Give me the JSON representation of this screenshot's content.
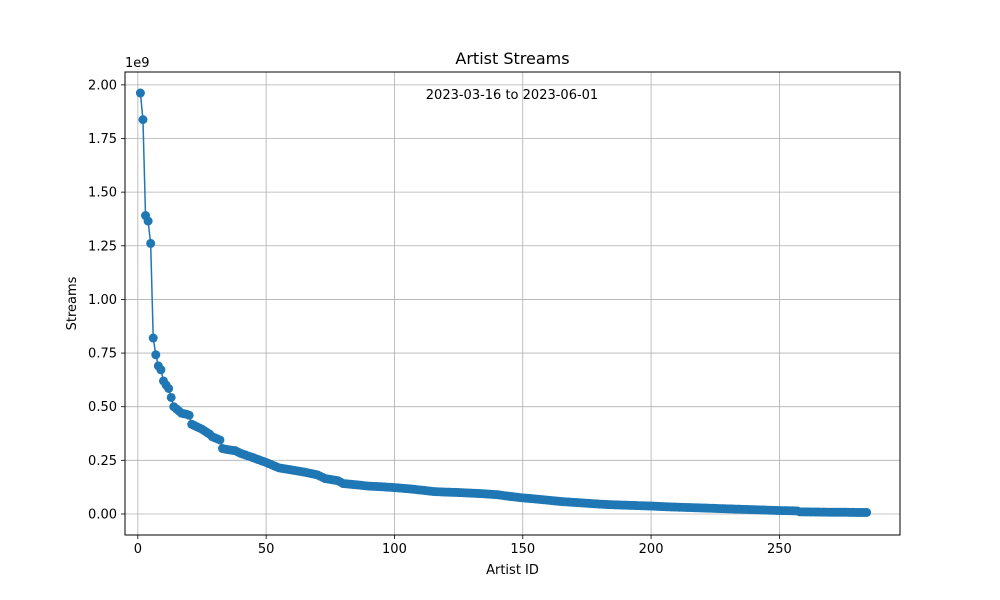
{
  "chart_data": {
    "type": "line",
    "title": "Artist Streams",
    "annotation": "2023-03-16 to 2023-06-01",
    "xlabel": "Artist ID",
    "ylabel": "Streams",
    "y_offset_label": "1e9",
    "xlim": [
      -5,
      297
    ],
    "ylim": [
      -0.098,
      2.06
    ],
    "x_ticks": [
      0,
      50,
      100,
      150,
      200,
      250
    ],
    "y_ticks": [
      0.0,
      0.25,
      0.5,
      0.75,
      1.0,
      1.25,
      1.5,
      1.75,
      2.0
    ],
    "y_tick_labels": [
      "0.00",
      "0.25",
      "0.50",
      "0.75",
      "1.00",
      "1.25",
      "1.50",
      "1.75",
      "2.00"
    ],
    "x_tick_labels": [
      "0",
      "50",
      "100",
      "150",
      "200",
      "250"
    ],
    "grid": true,
    "series_color": "#1f77b4",
    "key_points": [
      [
        1,
        1.962
      ],
      [
        2,
        1.838
      ],
      [
        3,
        1.391
      ],
      [
        4,
        1.365
      ],
      [
        5,
        1.261
      ],
      [
        6,
        0.82
      ],
      [
        7,
        0.742
      ],
      [
        8,
        0.69
      ],
      [
        9,
        0.672
      ],
      [
        10,
        0.62
      ],
      [
        11,
        0.601
      ],
      [
        12,
        0.585
      ],
      [
        13,
        0.543
      ],
      [
        14,
        0.5
      ],
      [
        15,
        0.49
      ],
      [
        16,
        0.48
      ],
      [
        17,
        0.47
      ],
      [
        18,
        0.467
      ],
      [
        19,
        0.465
      ],
      [
        20,
        0.46
      ],
      [
        21,
        0.418
      ],
      [
        25,
        0.395
      ],
      [
        28,
        0.372
      ],
      [
        29,
        0.36
      ],
      [
        32,
        0.345
      ],
      [
        33,
        0.305
      ],
      [
        35,
        0.3
      ],
      [
        38,
        0.295
      ],
      [
        40,
        0.283
      ],
      [
        45,
        0.262
      ],
      [
        50,
        0.24
      ],
      [
        55,
        0.215
      ],
      [
        60,
        0.205
      ],
      [
        65,
        0.195
      ],
      [
        70,
        0.182
      ],
      [
        73,
        0.165
      ],
      [
        78,
        0.155
      ],
      [
        80,
        0.142
      ],
      [
        85,
        0.136
      ],
      [
        90,
        0.13
      ],
      [
        95,
        0.127
      ],
      [
        100,
        0.123
      ],
      [
        105,
        0.118
      ],
      [
        110,
        0.112
      ],
      [
        115,
        0.105
      ],
      [
        120,
        0.102
      ],
      [
        125,
        0.1
      ],
      [
        130,
        0.097
      ],
      [
        135,
        0.094
      ],
      [
        140,
        0.09
      ],
      [
        145,
        0.082
      ],
      [
        150,
        0.075
      ],
      [
        155,
        0.07
      ],
      [
        160,
        0.064
      ],
      [
        165,
        0.058
      ],
      [
        170,
        0.054
      ],
      [
        175,
        0.05
      ],
      [
        180,
        0.046
      ],
      [
        185,
        0.043
      ],
      [
        190,
        0.041
      ],
      [
        195,
        0.039
      ],
      [
        200,
        0.037
      ],
      [
        205,
        0.034
      ],
      [
        210,
        0.032
      ],
      [
        215,
        0.03
      ],
      [
        220,
        0.028
      ],
      [
        225,
        0.026
      ],
      [
        230,
        0.024
      ],
      [
        235,
        0.022
      ],
      [
        240,
        0.02
      ],
      [
        245,
        0.018
      ],
      [
        250,
        0.016
      ],
      [
        255,
        0.015
      ],
      [
        257,
        0.014
      ],
      [
        258,
        0.01
      ],
      [
        265,
        0.009
      ],
      [
        270,
        0.008
      ],
      [
        275,
        0.008
      ],
      [
        280,
        0.007
      ],
      [
        284,
        0.007
      ]
    ],
    "n_points": 284
  }
}
